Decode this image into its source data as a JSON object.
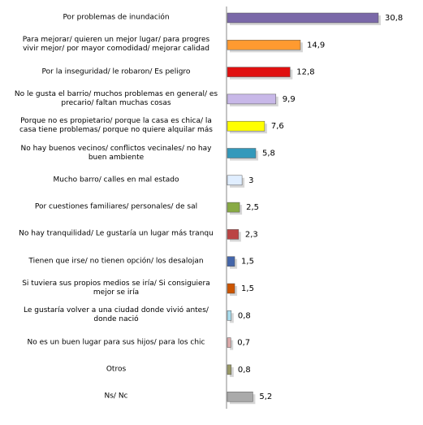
{
  "chart_data": {
    "type": "bar",
    "orientation": "horizontal",
    "categories": [
      "Por problemas de inundación",
      "Para mejorar/ quieren un mejor lugar/ para progres\nvivir mejor/ por mayor comodidad/ mejorar calidad",
      "Por la inseguridad/ le robaron/ Es peligro",
      "No le gusta el barrio/ muchos problemas en general/ es\nprecario/ faltan muchas cosas",
      "Porque no es propietario/ porque la casa es chica/ la\ncasa tiene problemas/ porque no quiere alquilar más",
      "No hay buenos vecinos/ conflictos vecinales/ no hay\nbuen ambiente",
      "Mucho barro/ calles en mal estado",
      "Por cuestiones familiares/ personales/ de sal",
      "No hay tranquilidad/ Le gustaría un lugar más tranqu",
      "Tienen que irse/ no tienen opción/ los desalojan",
      "Si tuviera sus propios medios se iría/ Si consiguiera\nmejor se iría",
      "Le gustaría volver a una ciudad donde vivió antes/\ndonde nació",
      "No es un buen lugar para sus hijos/ para los chic",
      "Otros",
      "Ns/ Nc"
    ],
    "values": [
      30.8,
      14.9,
      12.8,
      9.9,
      7.6,
      5.8,
      3,
      2.5,
      2.3,
      1.5,
      1.5,
      0.8,
      0.7,
      0.8,
      5.2
    ],
    "value_labels": [
      "30,8",
      "14,9",
      "12,8",
      "9,9",
      "7,6",
      "5,8",
      "3",
      "2,5",
      "2,3",
      "1,5",
      "1,5",
      "0,8",
      "0,7",
      "0,8",
      "5,2"
    ],
    "colors": [
      "#7a68a8",
      "#ff9a30",
      "#e01010",
      "#c8b8e8",
      "#ffff00",
      "#3399bb",
      "#e0eeff",
      "#88aa44",
      "#bb4444",
      "#4466aa",
      "#cc5500",
      "#aaddee",
      "#ddaaaa",
      "#999966",
      "#aaaaaa"
    ]
  }
}
